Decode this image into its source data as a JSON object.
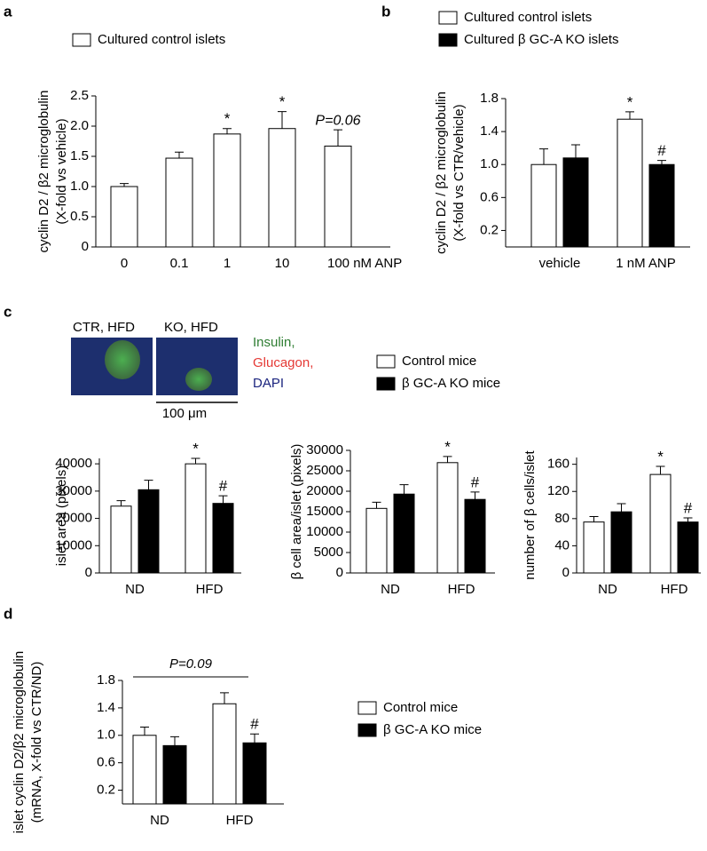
{
  "chart_data": [
    {
      "type": "bar",
      "panel": "a",
      "ylabel": [
        "cyclin D2 / β2 microglobulin",
        "(X-fold vs vehicle)"
      ],
      "categories": [
        "0",
        "0.1",
        "1",
        "10",
        "100 nM ANP"
      ],
      "series": [
        {
          "name": "Cultured control islets",
          "color": "#ffffff",
          "values": [
            1.0,
            1.47,
            1.87,
            1.96,
            1.67
          ],
          "errors": [
            0.05,
            0.1,
            0.09,
            0.28,
            0.27
          ],
          "annotations": [
            null,
            null,
            "*",
            "*",
            "P=0.06"
          ]
        }
      ],
      "ylim": [
        0,
        2.5
      ],
      "yticks": [
        0,
        0.5,
        {
          "value": 1,
          "label": "1.0"
        },
        1.5,
        {
          "value": 2,
          "label": "2.0"
        },
        2.5
      ]
    },
    {
      "type": "bar",
      "panel": "b",
      "ylabel": [
        "cyclin D2 / β2 microglobulin",
        "(X-fold vs CTR/vehicle)"
      ],
      "categories": [
        "vehicle",
        "1 nM ANP"
      ],
      "series": [
        {
          "name": "Cultured control islets",
          "color": "#ffffff",
          "values": [
            1.0,
            1.55
          ],
          "errors": [
            0.19,
            0.09
          ],
          "annotations": [
            null,
            "*"
          ]
        },
        {
          "name": "Cultured β GC-A KO islets",
          "color": "#000000",
          "values": [
            1.08,
            1.0
          ],
          "errors": [
            0.16,
            0.05
          ],
          "annotations": [
            null,
            "#"
          ]
        }
      ],
      "ylim": [
        0,
        1.8
      ],
      "yticks": [
        0.2,
        0.6,
        {
          "value": 1,
          "label": "1.0"
        },
        1.4,
        1.8
      ]
    },
    {
      "type": "bar",
      "panel": "c",
      "ylabel": [
        "islet area (pixels)"
      ],
      "categories": [
        "ND",
        "HFD"
      ],
      "series": [
        {
          "name": "Control mice",
          "color": "#ffffff",
          "values": [
            24500,
            40000
          ],
          "errors": [
            2000,
            2000
          ],
          "annotations": [
            null,
            "*"
          ]
        },
        {
          "name": "β GC-A KO mice",
          "color": "#000000",
          "values": [
            30500,
            25500
          ],
          "errors": [
            3500,
            2800
          ],
          "annotations": [
            null,
            "#"
          ]
        }
      ],
      "ylim": [
        0,
        42000
      ],
      "yticks": [
        0,
        10000,
        20000,
        30000,
        40000
      ]
    },
    {
      "type": "bar",
      "ylabel": [
        "β cell area/islet (pixels)"
      ],
      "categories": [
        "ND",
        "HFD"
      ],
      "series": [
        {
          "color": "#ffffff",
          "values": [
            15800,
            27000
          ],
          "errors": [
            1500,
            1500
          ],
          "annotations": [
            null,
            "*"
          ]
        },
        {
          "color": "#000000",
          "values": [
            19300,
            18000
          ],
          "errors": [
            2300,
            1800
          ],
          "annotations": [
            null,
            "#"
          ]
        }
      ],
      "ylim": [
        0,
        30000
      ],
      "yticks": [
        0,
        5000,
        10000,
        15000,
        20000,
        25000,
        30000
      ]
    },
    {
      "type": "bar",
      "ylabel": [
        "number of β cells/islet"
      ],
      "categories": [
        "ND",
        "HFD"
      ],
      "series": [
        {
          "color": "#ffffff",
          "values": [
            75,
            145
          ],
          "errors": [
            8,
            12
          ],
          "annotations": [
            null,
            "*"
          ]
        },
        {
          "color": "#000000",
          "values": [
            90,
            75
          ],
          "errors": [
            12,
            6
          ],
          "annotations": [
            null,
            "#"
          ]
        }
      ],
      "ylim": [
        0,
        170
      ],
      "yticks": [
        0,
        40,
        80,
        120,
        160
      ]
    },
    {
      "type": "bar",
      "panel": "d",
      "ylabel": [
        "islet cyclin D2/β2 microglobulin",
        "(mRNA, X-fold vs CTR/ND)"
      ],
      "categories": [
        "ND",
        "HFD"
      ],
      "series": [
        {
          "name": "Control mice",
          "color": "#ffffff",
          "values": [
            1.0,
            1.46
          ],
          "errors": [
            0.12,
            0.16
          ],
          "annotations": [
            null,
            null
          ]
        },
        {
          "name": "β GC-A KO mice",
          "color": "#000000",
          "values": [
            0.85,
            0.89
          ],
          "errors": [
            0.13,
            0.13
          ],
          "annotations": [
            null,
            "#"
          ]
        }
      ],
      "bracket": "P=0.09",
      "ylim": [
        0,
        1.8
      ],
      "yticks": [
        0.2,
        0.6,
        {
          "value": 1,
          "label": "1.0"
        },
        1.4,
        1.8
      ]
    }
  ],
  "micrograph": {
    "images": [
      "CTR, HFD",
      "KO, HFD"
    ],
    "stains": [
      {
        "label": "Insulin,",
        "color": "#2e7d32"
      },
      {
        "label": "Glucagon,",
        "color": "#e53935"
      },
      {
        "label": "DAPI",
        "color": "#1a237e"
      }
    ],
    "scale": "100 μm"
  }
}
